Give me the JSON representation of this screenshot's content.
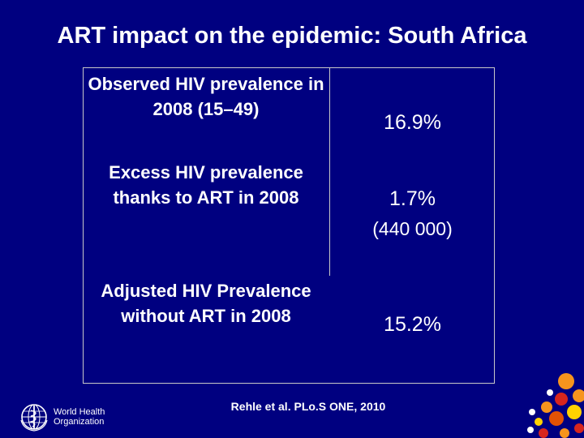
{
  "slide": {
    "title": "ART impact on the epidemic: South Africa"
  },
  "table": {
    "rows": [
      {
        "label": "Observed HIV prevalence in  2008 (15–49)",
        "value": "16.9%",
        "sub_value": ""
      },
      {
        "label": "Excess HIV prevalence thanks to ART in 2008",
        "value": "1.7%",
        "sub_value": "(440 000)"
      },
      {
        "label": "Adjusted HIV Prevalence without ART in 2008",
        "value": "15.2%",
        "sub_value": ""
      }
    ]
  },
  "citation": "Rehle et al. PLo.S ONE, 2010",
  "logo": {
    "line1": "World Health",
    "line2": "Organization",
    "icon": "who-emblem-icon"
  },
  "colors": {
    "background": "#000080",
    "text": "#ffffff",
    "border": "#c8c8c8",
    "dot_orange": "#f7941d",
    "dot_red": "#d7261e",
    "dot_yellow": "#ffd200",
    "dot_dark_orange": "#e35205"
  }
}
